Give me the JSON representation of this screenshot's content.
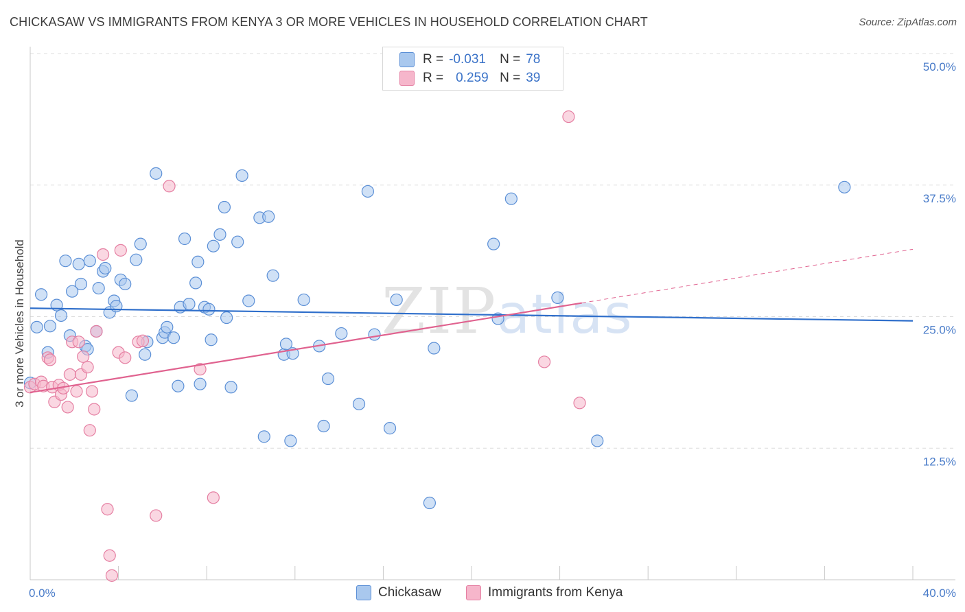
{
  "title": "CHICKASAW VS IMMIGRANTS FROM KENYA 3 OR MORE VEHICLES IN HOUSEHOLD CORRELATION CHART",
  "source": "Source: ZipAtlas.com",
  "watermark": {
    "zip": "ZIP",
    "atlas": "atlas"
  },
  "colors": {
    "blue_fill": "#a9c8ee",
    "blue_stroke": "#5b8fd6",
    "blue_line": "#2f6fcb",
    "pink_fill": "#f6b6cb",
    "pink_stroke": "#e57fa2",
    "pink_line": "#e0628f",
    "grid": "#dcdcdc",
    "tick_text": "#4a7cc9"
  },
  "legend": {
    "rows": [
      {
        "r_label": "R =",
        "r_value": "-0.031",
        "n_label": "N =",
        "n_value": "78",
        "color": "#a9c8ee"
      },
      {
        "r_label": "R =",
        "r_value": "0.259",
        "n_label": "N =",
        "n_value": "39",
        "color": "#f6b6cb"
      }
    ]
  },
  "bottom_legend": [
    {
      "label": "Chickasaw",
      "color": "#a9c8ee"
    },
    {
      "label": "Immigrants from Kenya",
      "color": "#f6b6cb"
    }
  ],
  "chart_data": {
    "type": "scatter",
    "title": "CHICKASAW VS IMMIGRANTS FROM KENYA 3 OR MORE VEHICLES IN HOUSEHOLD CORRELATION CHART",
    "xlabel": "",
    "ylabel": "3 or more Vehicles in Household",
    "xlim": [
      0,
      40
    ],
    "ylim": [
      0,
      50
    ],
    "x_ticks": [
      {
        "value": 0,
        "label": "0.0%"
      },
      {
        "value": 40,
        "label": "40.0%"
      }
    ],
    "y_ticks": [
      {
        "value": 12.5,
        "label": "12.5%"
      },
      {
        "value": 25.0,
        "label": "25.0%"
      },
      {
        "value": 37.5,
        "label": "37.5%"
      },
      {
        "value": 50.0,
        "label": "50.0%"
      }
    ],
    "grid": true,
    "legend_position": "top-center",
    "series": [
      {
        "name": "Chickasaw",
        "color": "#a9c8ee",
        "trend": {
          "x": [
            0,
            40
          ],
          "y": [
            25.8,
            24.6
          ],
          "dashed_from": null
        },
        "points": [
          [
            0.0,
            18.7
          ],
          [
            0.3,
            24.0
          ],
          [
            0.5,
            27.1
          ],
          [
            0.8,
            21.6
          ],
          [
            0.9,
            24.1
          ],
          [
            1.2,
            26.1
          ],
          [
            1.4,
            25.1
          ],
          [
            1.6,
            30.3
          ],
          [
            1.8,
            23.2
          ],
          [
            1.9,
            27.4
          ],
          [
            2.2,
            30.0
          ],
          [
            2.3,
            28.1
          ],
          [
            2.5,
            22.2
          ],
          [
            2.7,
            30.3
          ],
          [
            3.0,
            23.6
          ],
          [
            3.1,
            27.7
          ],
          [
            3.3,
            29.3
          ],
          [
            3.4,
            29.6
          ],
          [
            3.6,
            25.4
          ],
          [
            3.8,
            26.5
          ],
          [
            3.9,
            26.0
          ],
          [
            4.1,
            28.5
          ],
          [
            4.3,
            28.1
          ],
          [
            4.6,
            17.5
          ],
          [
            4.8,
            30.4
          ],
          [
            5.0,
            31.9
          ],
          [
            5.2,
            21.4
          ],
          [
            5.3,
            22.6
          ],
          [
            5.7,
            38.6
          ],
          [
            6.0,
            23.0
          ],
          [
            6.1,
            23.5
          ],
          [
            6.2,
            24.0
          ],
          [
            6.5,
            23.0
          ],
          [
            6.7,
            18.4
          ],
          [
            6.8,
            25.9
          ],
          [
            7.0,
            32.4
          ],
          [
            7.2,
            26.2
          ],
          [
            7.5,
            28.2
          ],
          [
            7.6,
            30.2
          ],
          [
            7.7,
            18.6
          ],
          [
            7.9,
            25.9
          ],
          [
            8.1,
            25.7
          ],
          [
            8.2,
            22.8
          ],
          [
            8.3,
            31.7
          ],
          [
            8.6,
            32.8
          ],
          [
            8.8,
            35.4
          ],
          [
            8.9,
            24.9
          ],
          [
            9.1,
            18.3
          ],
          [
            9.4,
            32.1
          ],
          [
            9.6,
            38.4
          ],
          [
            9.9,
            26.5
          ],
          [
            10.4,
            34.4
          ],
          [
            10.6,
            13.6
          ],
          [
            10.8,
            34.5
          ],
          [
            11.0,
            28.9
          ],
          [
            11.5,
            21.4
          ],
          [
            11.6,
            22.4
          ],
          [
            11.8,
            13.2
          ],
          [
            11.9,
            21.5
          ],
          [
            12.4,
            26.6
          ],
          [
            13.1,
            22.2
          ],
          [
            13.3,
            14.6
          ],
          [
            13.5,
            19.1
          ],
          [
            14.1,
            23.4
          ],
          [
            14.9,
            16.7
          ],
          [
            15.3,
            36.9
          ],
          [
            15.6,
            23.3
          ],
          [
            16.3,
            14.4
          ],
          [
            16.6,
            26.6
          ],
          [
            18.1,
            7.3
          ],
          [
            18.3,
            22.0
          ],
          [
            21.0,
            31.9
          ],
          [
            21.2,
            24.8
          ],
          [
            21.8,
            36.2
          ],
          [
            23.9,
            26.8
          ],
          [
            25.7,
            13.2
          ],
          [
            36.9,
            37.3
          ],
          [
            2.6,
            21.9
          ]
        ]
      },
      {
        "name": "Immigrants from Kenya",
        "color": "#f6b6cb",
        "trend": {
          "x": [
            0,
            40
          ],
          "y": [
            17.8,
            31.4
          ],
          "dashed_from": 25.0
        },
        "points": [
          [
            0.0,
            18.3
          ],
          [
            0.2,
            18.6
          ],
          [
            0.5,
            18.8
          ],
          [
            0.6,
            18.4
          ],
          [
            0.8,
            21.1
          ],
          [
            0.9,
            20.9
          ],
          [
            1.0,
            18.3
          ],
          [
            1.1,
            16.9
          ],
          [
            1.3,
            18.5
          ],
          [
            1.4,
            17.6
          ],
          [
            1.5,
            18.2
          ],
          [
            1.7,
            16.4
          ],
          [
            1.8,
            19.5
          ],
          [
            1.9,
            22.6
          ],
          [
            2.1,
            17.9
          ],
          [
            2.2,
            22.6
          ],
          [
            2.3,
            19.5
          ],
          [
            2.4,
            21.2
          ],
          [
            2.6,
            20.2
          ],
          [
            2.7,
            14.2
          ],
          [
            2.8,
            17.9
          ],
          [
            2.9,
            16.2
          ],
          [
            3.0,
            23.6
          ],
          [
            3.3,
            30.9
          ],
          [
            3.5,
            6.7
          ],
          [
            3.6,
            2.3
          ],
          [
            3.7,
            0.4
          ],
          [
            4.0,
            21.6
          ],
          [
            4.1,
            31.3
          ],
          [
            4.3,
            21.1
          ],
          [
            4.9,
            22.6
          ],
          [
            5.1,
            22.7
          ],
          [
            5.7,
            6.1
          ],
          [
            6.3,
            37.4
          ],
          [
            7.7,
            20.0
          ],
          [
            8.3,
            7.8
          ],
          [
            23.3,
            20.7
          ],
          [
            24.4,
            44.0
          ],
          [
            24.9,
            16.8
          ]
        ]
      }
    ]
  }
}
